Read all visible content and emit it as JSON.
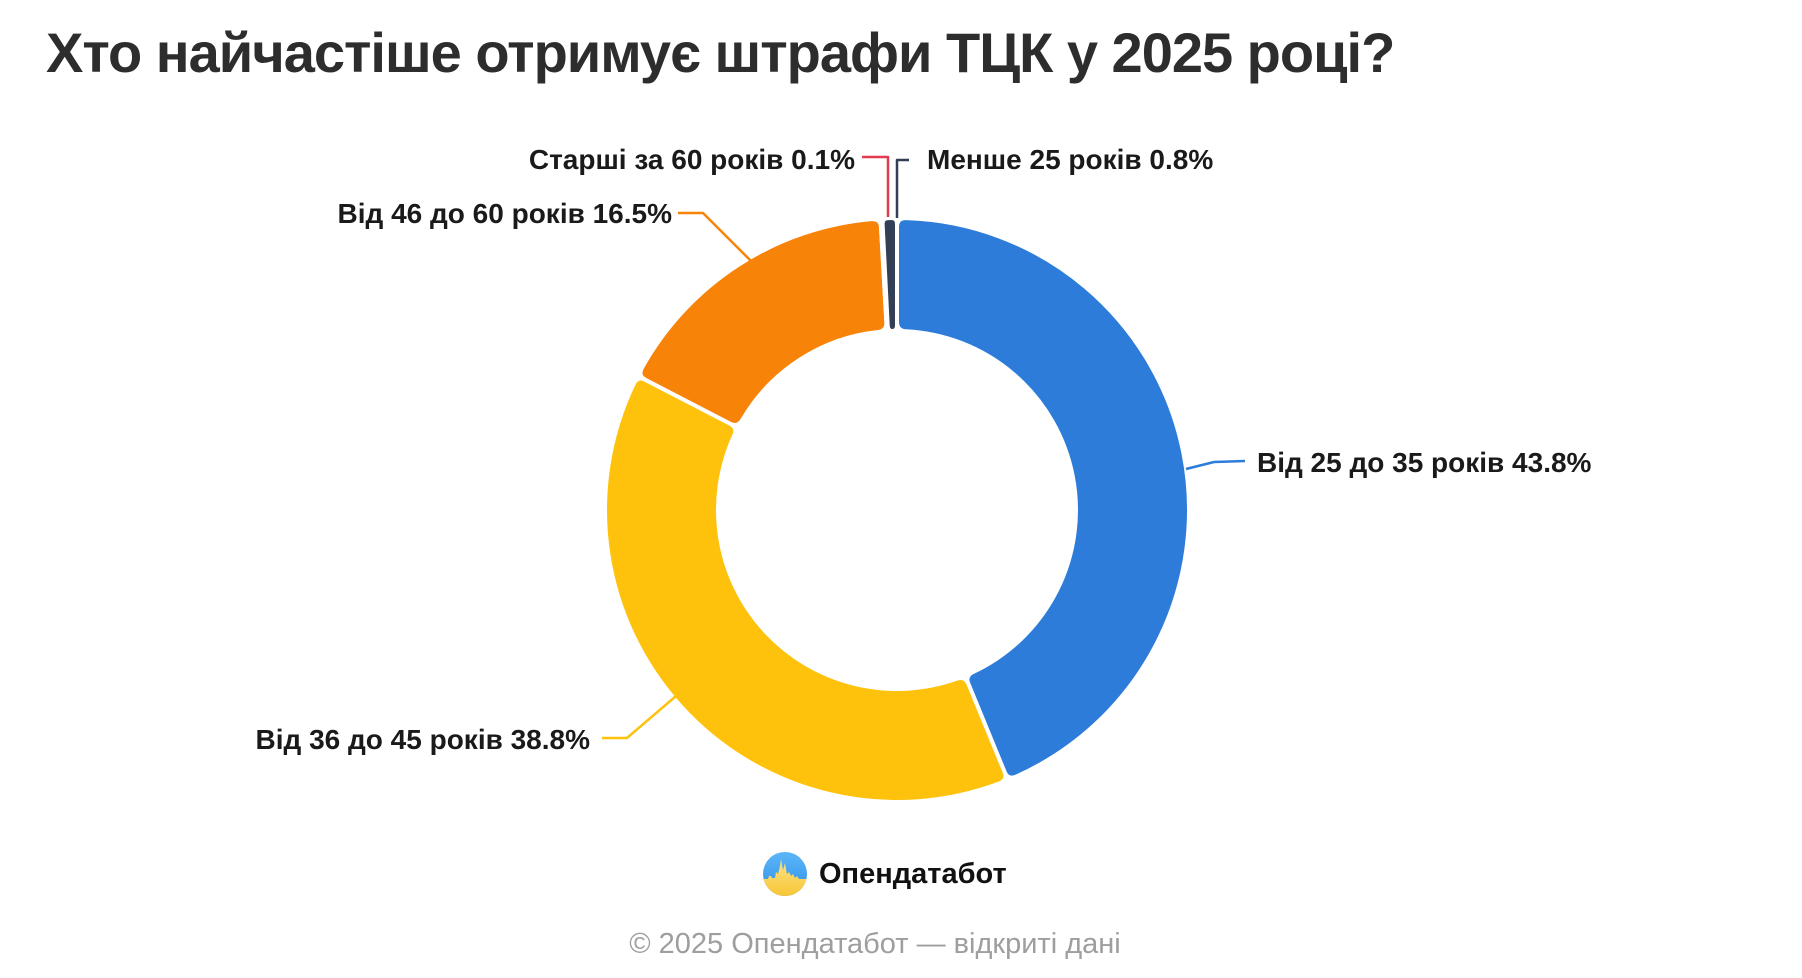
{
  "title": "Хто найчастіше отримує штрафи ТЦК у 2025 році?",
  "chart_data": {
    "type": "pie",
    "subtype": "donut",
    "title": "Хто найчастіше отримує штрафи ТЦК у 2025 році?",
    "unit": "%",
    "start_angle": "12 o'clock",
    "direction": "clockwise",
    "legend_position": "callout-labels",
    "slices": [
      {
        "label": "Від 25 до 35 років",
        "value": 43.8,
        "color": "#2E7CD9",
        "callout": "Від 25 до 35 років 43.8%"
      },
      {
        "label": "Від 36 до 45 років",
        "value": 38.8,
        "color": "#FEC20D",
        "callout": "Від 36 до 45 років 38.8%"
      },
      {
        "label": "Від 46 до 60 років",
        "value": 16.5,
        "color": "#F78309",
        "callout": "Від 46 до 60 років 16.5%"
      },
      {
        "label": "Старші за 60 років",
        "value": 0.1,
        "color": "#E23B50",
        "callout": "Старші за 60 років 0.1%"
      },
      {
        "label": "Менше 25 років",
        "value": 0.8,
        "color": "#333F54",
        "callout": "Менше 25 років 0.8%"
      }
    ]
  },
  "footer": {
    "brand": "Опендатабот",
    "logo": "opendatabot-flag-skyline-icon",
    "copyright": "© 2025 Опендатабот — відкриті дані"
  },
  "colors": {
    "background": "#FFFFFF",
    "title_text": "#2D2D2D",
    "label_text": "#1A1A1A",
    "muted_text": "#9E9E9E",
    "slice_border": "#FFFFFF"
  }
}
